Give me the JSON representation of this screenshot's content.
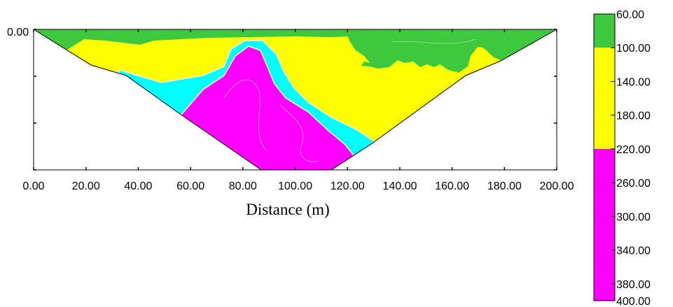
{
  "chart_data": {
    "type": "heatmap",
    "xlabel": "Distance (m)",
    "xlim": [
      0,
      200
    ],
    "x_ticks": [
      "0.00",
      "20.00",
      "40.00",
      "60.00",
      "80.00",
      "100.00",
      "120.00",
      "140.00",
      "160.00",
      "180.00",
      "200.00"
    ],
    "y_ticks": [
      "0.00"
    ],
    "colorbar": {
      "placement": "right",
      "ticks": [
        "60.00",
        "100.00",
        "140.00",
        "180.00",
        "220.00",
        "260.00",
        "300.00",
        "340.00",
        "380.00",
        "400.00"
      ],
      "values": [
        60,
        100,
        140,
        180,
        220,
        260,
        300,
        340,
        380,
        400
      ],
      "bands": [
        {
          "from": 60,
          "to": 100,
          "color": "#3dc83d"
        },
        {
          "from": 100,
          "to": 220,
          "color": "#ffff00"
        },
        {
          "from": 220,
          "to": 400,
          "color": "#ff00ff"
        }
      ]
    },
    "colors": {
      "green": "#3dc83d",
      "yellow": "#ffff00",
      "cyan": "#00ffff",
      "magenta": "#ff00ff"
    }
  }
}
